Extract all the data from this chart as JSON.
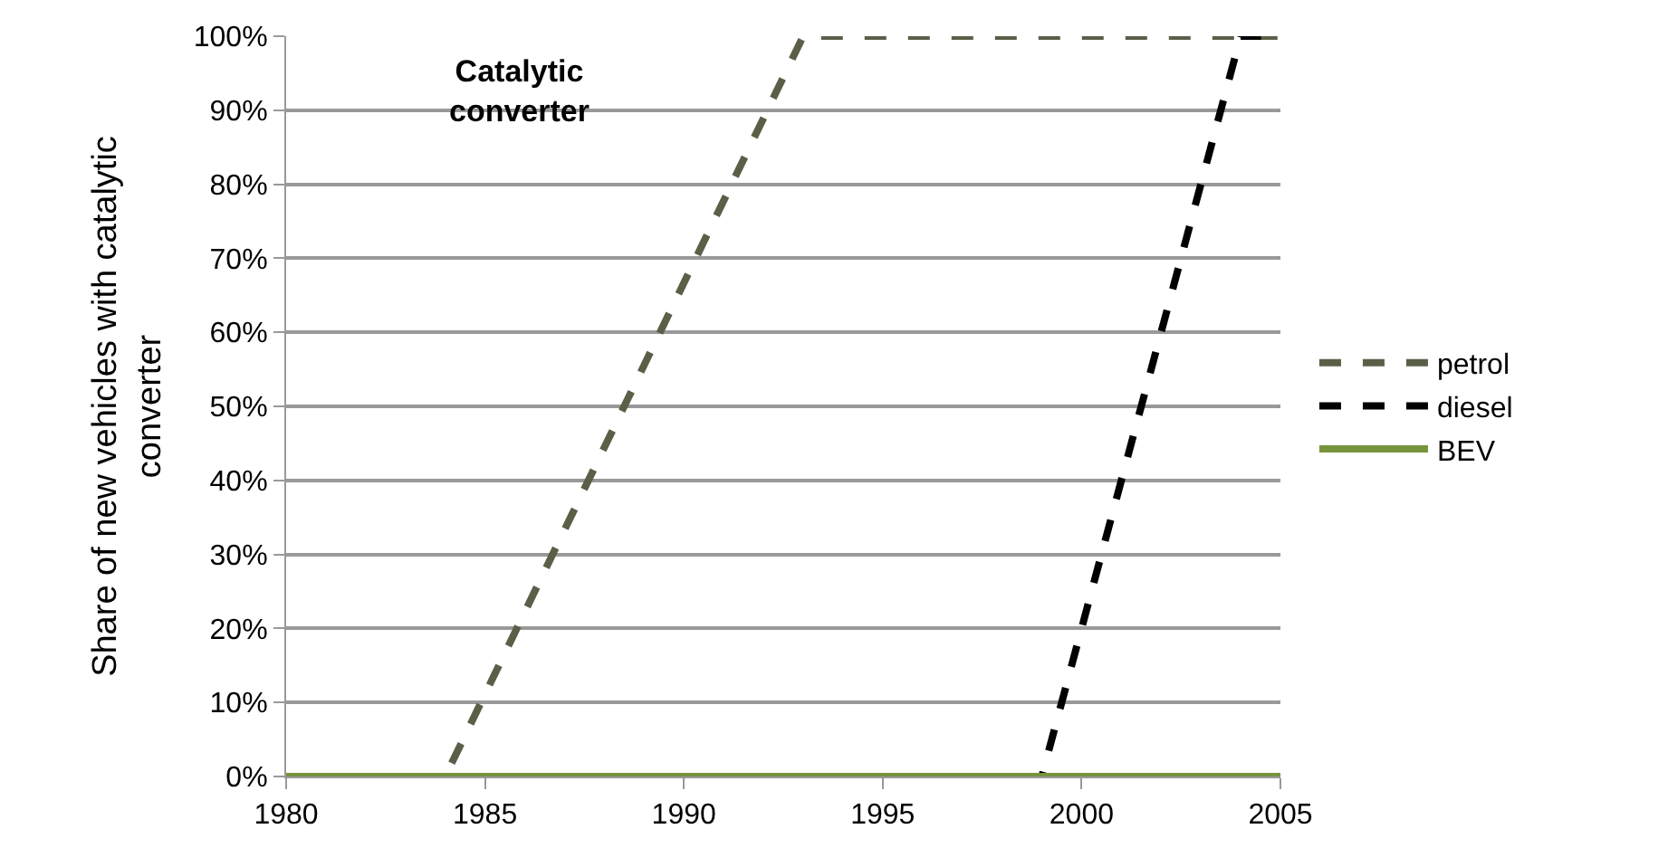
{
  "chart_data": {
    "type": "line",
    "ylabel": "Share of new vehicles with catalytic\nconverter",
    "annotations": [
      "Catalytic\nconverter"
    ],
    "series": [
      {
        "name": "petrol",
        "color": "#5a6048",
        "line_style": "dashed",
        "x": [
          1980,
          1984,
          1993,
          2005
        ],
        "values": [
          0,
          0,
          100,
          100
        ]
      },
      {
        "name": "diesel",
        "color": "#000000",
        "line_style": "dashed",
        "x": [
          1980,
          1999,
          2004,
          2005
        ],
        "values": [
          0,
          0,
          100,
          100
        ]
      },
      {
        "name": "BEV",
        "color": "#77933c",
        "line_style": "solid",
        "x": [
          1980,
          2005
        ],
        "values": [
          0,
          0
        ]
      }
    ],
    "xlim": [
      1980,
      2005
    ],
    "xticks": [
      1980,
      1985,
      1990,
      1995,
      2000,
      2005
    ],
    "ylim": [
      0,
      100
    ],
    "yticks": [
      {
        "value": 0,
        "label": "0%"
      },
      {
        "value": 10,
        "label": "10%"
      },
      {
        "value": 20,
        "label": "20%"
      },
      {
        "value": 30,
        "label": "30%"
      },
      {
        "value": 40,
        "label": "40%"
      },
      {
        "value": 50,
        "label": "50%"
      },
      {
        "value": 60,
        "label": "60%"
      },
      {
        "value": 70,
        "label": "70%"
      },
      {
        "value": 80,
        "label": "80%"
      },
      {
        "value": 90,
        "label": "90%"
      },
      {
        "value": 100,
        "label": "100%"
      }
    ],
    "grid": "y",
    "legend": "right",
    "marker": "none"
  }
}
